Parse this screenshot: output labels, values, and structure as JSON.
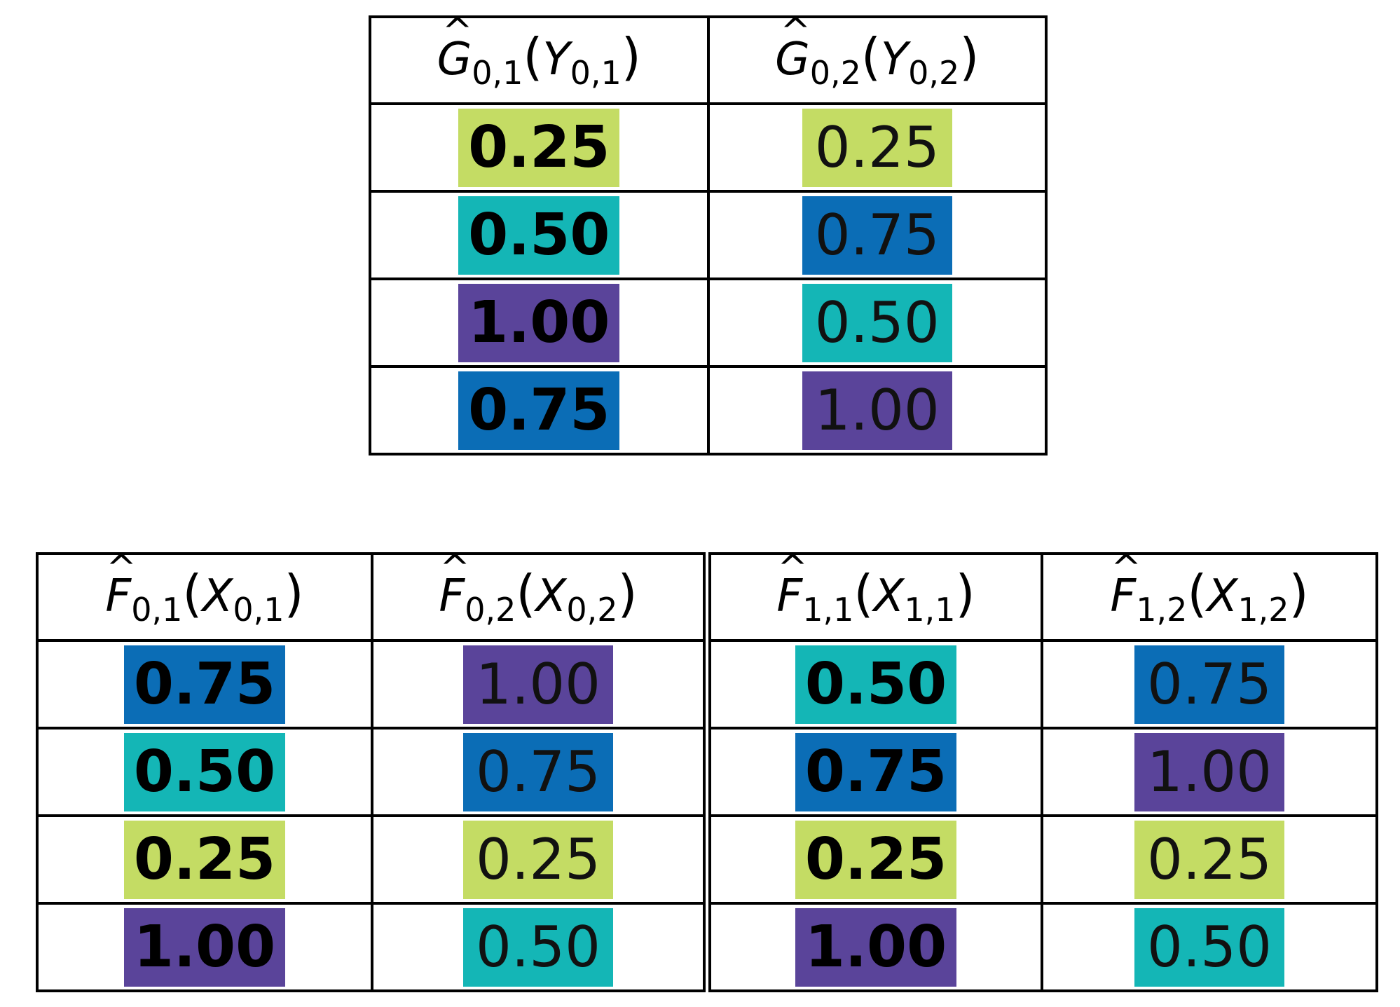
{
  "colors": {
    "0.25": "#c4dc64",
    "0.50": "#14b6b6",
    "0.75": "#0b6db6",
    "1.00": "#5a449a"
  },
  "top_table": {
    "headers": [
      {
        "fn": "G",
        "sub": "0,1",
        "arg": "Y",
        "arg_sub": "0,1"
      },
      {
        "fn": "G",
        "sub": "0,2",
        "arg": "Y",
        "arg_sub": "0,2"
      }
    ],
    "hat": "^",
    "open_paren": "(",
    "close_paren": ")",
    "rows": [
      [
        {
          "text": "0.25",
          "bold": true
        },
        {
          "text": "0.25",
          "bold": false
        }
      ],
      [
        {
          "text": "0.50",
          "bold": true
        },
        {
          "text": "0.75",
          "bold": false
        }
      ],
      [
        {
          "text": "1.00",
          "bold": true
        },
        {
          "text": "0.50",
          "bold": false
        }
      ],
      [
        {
          "text": "0.75",
          "bold": true
        },
        {
          "text": "1.00",
          "bold": false
        }
      ]
    ]
  },
  "bottom_table": {
    "headers": [
      {
        "fn": "F",
        "sub": "0,1",
        "arg": "X",
        "arg_sub": "0,1"
      },
      {
        "fn": "F",
        "sub": "0,2",
        "arg": "X",
        "arg_sub": "0,2"
      },
      {
        "fn": "F",
        "sub": "1,1",
        "arg": "X",
        "arg_sub": "1,1"
      },
      {
        "fn": "F",
        "sub": "1,2",
        "arg": "X",
        "arg_sub": "1,2"
      }
    ],
    "rows": [
      [
        {
          "text": "0.75",
          "bold": true
        },
        {
          "text": "1.00",
          "bold": false
        },
        {
          "text": "0.50",
          "bold": true
        },
        {
          "text": "0.75",
          "bold": false
        }
      ],
      [
        {
          "text": "0.50",
          "bold": true
        },
        {
          "text": "0.75",
          "bold": false
        },
        {
          "text": "0.75",
          "bold": true
        },
        {
          "text": "1.00",
          "bold": false
        }
      ],
      [
        {
          "text": "0.25",
          "bold": true
        },
        {
          "text": "0.25",
          "bold": false
        },
        {
          "text": "0.25",
          "bold": true
        },
        {
          "text": "0.25",
          "bold": false
        }
      ],
      [
        {
          "text": "1.00",
          "bold": true
        },
        {
          "text": "0.50",
          "bold": false
        },
        {
          "text": "1.00",
          "bold": true
        },
        {
          "text": "0.50",
          "bold": false
        }
      ]
    ]
  }
}
